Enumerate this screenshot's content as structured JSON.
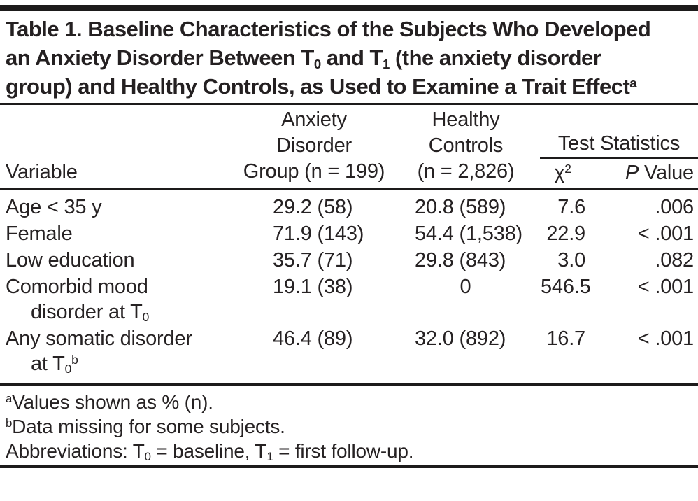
{
  "colors": {
    "background": "#ffffff",
    "text": "#262223",
    "rule": "#1d1b1b"
  },
  "title": {
    "segments": [
      {
        "t": "text",
        "v": "Table 1. Baseline Characteristics of the Subjects Who Developed an Anxiety Disorder Between T"
      },
      {
        "t": "sub",
        "v": "0"
      },
      {
        "t": "text",
        "v": " and T"
      },
      {
        "t": "sub",
        "v": "1"
      },
      {
        "t": "text",
        "v": " (the anxiety disorder group) and Healthy Controls, as Used to Examine a Trait Effect"
      },
      {
        "t": "sup",
        "v": "a"
      }
    ]
  },
  "table": {
    "header": {
      "variable": "Variable",
      "anxiety_group": [
        {
          "t": "text",
          "v": "Anxiety"
        },
        {
          "t": "br"
        },
        {
          "t": "text",
          "v": "Disorder"
        },
        {
          "t": "br"
        },
        {
          "t": "text",
          "v": "Group (n = 199)"
        }
      ],
      "healthy_controls": [
        {
          "t": "text",
          "v": "Healthy"
        },
        {
          "t": "br"
        },
        {
          "t": "text",
          "v": "Controls"
        },
        {
          "t": "br"
        },
        {
          "t": "text",
          "v": "(n = 2,826)"
        }
      ],
      "test_statistics": "Test Statistics",
      "chi_square": [
        {
          "t": "text",
          "v": "χ"
        },
        {
          "t": "sup",
          "v": "2"
        }
      ],
      "p_value": [
        {
          "t": "i",
          "v": "P"
        },
        {
          "t": "text",
          "v": " Value"
        }
      ]
    },
    "rows": [
      {
        "variable": [
          {
            "t": "text",
            "v": "Age < 35 y"
          }
        ],
        "anxiety_group": "29.2 (58)",
        "healthy_controls": "20.8 (589)",
        "chi_square": "7.6",
        "p_value": ".006"
      },
      {
        "variable": [
          {
            "t": "text",
            "v": "Female"
          }
        ],
        "anxiety_group": "71.9 (143)",
        "healthy_controls": "54.4 (1,538)",
        "chi_square": "22.9",
        "p_value": "< .001"
      },
      {
        "variable": [
          {
            "t": "text",
            "v": "Low education"
          }
        ],
        "anxiety_group": "35.7 (71)",
        "healthy_controls": "29.8 (843)",
        "chi_square": "3.0",
        "p_value": ".082"
      },
      {
        "variable": [
          {
            "t": "text",
            "v": "Comorbid mood"
          },
          {
            "t": "br"
          },
          {
            "t": "text",
            "v": "disorder at T"
          },
          {
            "t": "sub",
            "v": "0"
          }
        ],
        "anxiety_group": "19.1 (38)",
        "healthy_controls": "0",
        "chi_square": "546.5",
        "p_value": "< .001"
      },
      {
        "variable": [
          {
            "t": "text",
            "v": "Any somatic disorder"
          },
          {
            "t": "br"
          },
          {
            "t": "text",
            "v": "at T"
          },
          {
            "t": "sub",
            "v": "0"
          },
          {
            "t": "sup",
            "v": "b"
          }
        ],
        "anxiety_group": "46.4 (89)",
        "healthy_controls": "32.0 (892)",
        "chi_square": "16.7",
        "p_value": "< .001"
      }
    ]
  },
  "footnotes": [
    [
      {
        "t": "sup",
        "v": "a"
      },
      {
        "t": "text",
        "v": "Values shown as % (n)."
      }
    ],
    [
      {
        "t": "sup",
        "v": "b"
      },
      {
        "t": "text",
        "v": "Data missing for some subjects."
      }
    ],
    [
      {
        "t": "text",
        "v": "Abbreviations: T"
      },
      {
        "t": "sub",
        "v": "0"
      },
      {
        "t": "text",
        "v": " = baseline, T"
      },
      {
        "t": "sub",
        "v": "1"
      },
      {
        "t": "text",
        "v": " = first follow-up."
      }
    ]
  ]
}
